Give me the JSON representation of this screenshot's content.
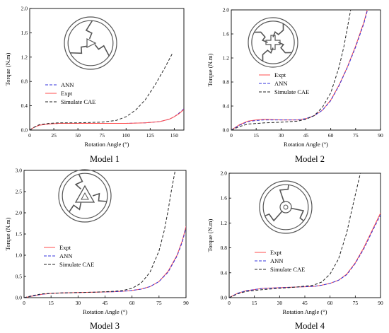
{
  "colors": {
    "expt": "#ff4d4d",
    "ann": "#3333dd",
    "cae": "#222222",
    "axis": "#000000",
    "model_drawing": "#555555"
  },
  "chart_data": [
    {
      "type": "line",
      "caption": "Model 1",
      "xlabel": "Rotation Angle (°)",
      "ylabel": "Torque (N.m)",
      "xlim": [
        0,
        160
      ],
      "ylim": [
        0,
        2.0
      ],
      "xticks": [
        "0",
        "25",
        "50",
        "75",
        "100",
        "125",
        "150"
      ],
      "xtick_values": [
        0,
        25,
        50,
        75,
        100,
        125,
        150
      ],
      "yticks": [
        "0.0",
        "0.4",
        "0.8",
        "1.2",
        "1.6",
        "2.0"
      ],
      "ytick_values": [
        0,
        0.4,
        0.8,
        1.2,
        1.6,
        2.0
      ],
      "grid": false,
      "legend_position": "center-left",
      "legend_order": [
        "ANN",
        "Expt",
        "Simulate CAE"
      ],
      "inset_icon": "model-1-geometry",
      "series": [
        {
          "name": "ANN",
          "style": "dashed",
          "color_key": "ann",
          "x": [
            0,
            5,
            10,
            20,
            30,
            50,
            75,
            100,
            120,
            135,
            145,
            150,
            155,
            160
          ],
          "y": [
            0,
            0.05,
            0.08,
            0.1,
            0.11,
            0.11,
            0.11,
            0.11,
            0.12,
            0.14,
            0.18,
            0.22,
            0.28,
            0.35
          ]
        },
        {
          "name": "Expt",
          "style": "solid",
          "color_key": "expt",
          "x": [
            0,
            5,
            10,
            20,
            30,
            50,
            75,
            100,
            120,
            135,
            145,
            150,
            155,
            160
          ],
          "y": [
            0,
            0.05,
            0.08,
            0.1,
            0.11,
            0.11,
            0.11,
            0.11,
            0.12,
            0.14,
            0.18,
            0.22,
            0.27,
            0.34
          ]
        },
        {
          "name": "Simulate CAE",
          "style": "dashed",
          "color_key": "cae",
          "x": [
            0,
            5,
            10,
            20,
            30,
            50,
            75,
            90,
            100,
            110,
            120,
            130,
            140,
            148
          ],
          "y": [
            0,
            0.05,
            0.09,
            0.11,
            0.12,
            0.12,
            0.13,
            0.16,
            0.22,
            0.33,
            0.5,
            0.74,
            1.02,
            1.26
          ]
        }
      ]
    },
    {
      "type": "line",
      "caption": "Model 2",
      "xlabel": "Rotation Angle (°)",
      "ylabel": "Torque (N.m)",
      "xlim": [
        0,
        90
      ],
      "ylim": [
        0,
        2.0
      ],
      "xticks": [
        "0",
        "15",
        "30",
        "45",
        "60",
        "75",
        "90"
      ],
      "xtick_values": [
        0,
        15,
        30,
        45,
        60,
        75,
        90
      ],
      "yticks": [
        "0.0",
        "0.4",
        "0.8",
        "1.2",
        "1.6",
        "2.0"
      ],
      "ytick_values": [
        0,
        0.4,
        0.8,
        1.2,
        1.6,
        2.0
      ],
      "grid": false,
      "legend_position": "center-right",
      "legend_order": [
        "Expt",
        "ANN",
        "Simulate CAE"
      ],
      "inset_icon": "model-2-geometry",
      "series": [
        {
          "name": "Expt",
          "style": "solid",
          "color_key": "expt",
          "x": [
            0,
            5,
            10,
            15,
            20,
            30,
            40,
            45,
            50,
            55,
            60,
            65,
            70,
            75,
            80,
            82
          ],
          "y": [
            0,
            0.09,
            0.15,
            0.17,
            0.18,
            0.17,
            0.17,
            0.19,
            0.24,
            0.33,
            0.5,
            0.75,
            1.05,
            1.4,
            1.8,
            2.0
          ]
        },
        {
          "name": "ANN",
          "style": "dashed",
          "color_key": "ann",
          "x": [
            0,
            5,
            10,
            15,
            20,
            30,
            40,
            45,
            50,
            55,
            60,
            65,
            70,
            75,
            80,
            82
          ],
          "y": [
            0,
            0.08,
            0.14,
            0.16,
            0.17,
            0.17,
            0.17,
            0.19,
            0.24,
            0.33,
            0.49,
            0.74,
            1.04,
            1.38,
            1.78,
            1.98
          ]
        },
        {
          "name": "Simulate CAE",
          "style": "dashed",
          "color_key": "cae",
          "x": [
            0,
            5,
            10,
            20,
            30,
            40,
            45,
            50,
            55,
            60,
            65,
            68,
            70,
            72
          ],
          "y": [
            0,
            0.06,
            0.1,
            0.12,
            0.13,
            0.15,
            0.18,
            0.24,
            0.38,
            0.62,
            1.05,
            1.4,
            1.7,
            2.0
          ]
        }
      ]
    },
    {
      "type": "line",
      "caption": "Model 3",
      "xlabel": "Rotation Angle (°)",
      "ylabel": "Torque (N.m)",
      "xlim": [
        0,
        90
      ],
      "ylim": [
        0,
        3.0
      ],
      "xticks": [
        "0",
        "15",
        "30",
        "45",
        "60",
        "75",
        "90"
      ],
      "xtick_values": [
        0,
        15,
        30,
        45,
        60,
        75,
        90
      ],
      "yticks": [
        "0.0",
        "0.5",
        "1.0",
        "1.5",
        "2.0",
        "2.5",
        "3.0"
      ],
      "ytick_values": [
        0,
        0.5,
        1.0,
        1.5,
        2.0,
        2.5,
        3.0
      ],
      "grid": false,
      "legend_position": "center-right",
      "legend_order": [
        "Expt",
        "ANN",
        "Simulate CAE"
      ],
      "inset_icon": "model-3-geometry",
      "series": [
        {
          "name": "Expt",
          "style": "solid",
          "color_key": "expt",
          "x": [
            0,
            5,
            10,
            15,
            20,
            30,
            40,
            50,
            55,
            60,
            65,
            70,
            75,
            80,
            85,
            88,
            90
          ],
          "y": [
            0,
            0.04,
            0.08,
            0.1,
            0.11,
            0.12,
            0.13,
            0.14,
            0.15,
            0.17,
            0.2,
            0.26,
            0.38,
            0.62,
            1.0,
            1.35,
            1.68
          ]
        },
        {
          "name": "ANN",
          "style": "dashed",
          "color_key": "ann",
          "x": [
            0,
            5,
            10,
            15,
            20,
            30,
            40,
            50,
            55,
            60,
            65,
            70,
            75,
            80,
            85,
            88,
            90
          ],
          "y": [
            0,
            0.04,
            0.08,
            0.1,
            0.11,
            0.12,
            0.13,
            0.14,
            0.15,
            0.17,
            0.2,
            0.26,
            0.38,
            0.6,
            0.98,
            1.32,
            1.65
          ]
        },
        {
          "name": "Simulate CAE",
          "style": "dashed",
          "color_key": "cae",
          "x": [
            0,
            5,
            10,
            20,
            30,
            40,
            50,
            55,
            60,
            65,
            70,
            75,
            78,
            80,
            82,
            84
          ],
          "y": [
            0,
            0.05,
            0.09,
            0.11,
            0.12,
            0.13,
            0.15,
            0.17,
            0.22,
            0.34,
            0.6,
            1.1,
            1.6,
            2.05,
            2.55,
            3.0
          ]
        }
      ]
    },
    {
      "type": "line",
      "caption": "Model 4",
      "xlabel": "Rotation Angle (°)",
      "ylabel": "Torque (N.m)",
      "xlim": [
        0,
        90
      ],
      "ylim": [
        0,
        2.0
      ],
      "xticks": [
        "0",
        "15",
        "30",
        "45",
        "60",
        "75",
        "90"
      ],
      "xtick_values": [
        0,
        15,
        30,
        45,
        60,
        75,
        90
      ],
      "yticks": [
        "0.0",
        "0.4",
        "0.8",
        "1.2",
        "1.6",
        "2.0"
      ],
      "ytick_values": [
        0,
        0.4,
        0.8,
        1.2,
        1.6,
        2.0
      ],
      "grid": false,
      "legend_position": "center-right",
      "legend_order": [
        "Expt",
        "ANN",
        "Simulate CAE"
      ],
      "inset_icon": "model-4-geometry",
      "series": [
        {
          "name": "Expt",
          "style": "solid",
          "color_key": "expt",
          "x": [
            0,
            5,
            10,
            15,
            20,
            30,
            40,
            50,
            55,
            60,
            65,
            70,
            75,
            80,
            85,
            90
          ],
          "y": [
            0,
            0.07,
            0.11,
            0.13,
            0.15,
            0.16,
            0.17,
            0.18,
            0.2,
            0.23,
            0.28,
            0.38,
            0.56,
            0.8,
            1.08,
            1.36
          ]
        },
        {
          "name": "ANN",
          "style": "dashed",
          "color_key": "ann",
          "x": [
            0,
            5,
            10,
            15,
            20,
            30,
            40,
            50,
            55,
            60,
            65,
            70,
            75,
            80,
            85,
            90
          ],
          "y": [
            0,
            0.07,
            0.11,
            0.13,
            0.15,
            0.16,
            0.17,
            0.18,
            0.2,
            0.23,
            0.28,
            0.37,
            0.55,
            0.78,
            1.06,
            1.33
          ]
        },
        {
          "name": "Simulate CAE",
          "style": "dashed",
          "color_key": "cae",
          "x": [
            0,
            5,
            10,
            20,
            30,
            40,
            50,
            55,
            60,
            65,
            70,
            72,
            75,
            78
          ],
          "y": [
            0,
            0.06,
            0.1,
            0.13,
            0.15,
            0.17,
            0.2,
            0.25,
            0.38,
            0.62,
            1.05,
            1.3,
            1.65,
            2.0
          ]
        }
      ]
    }
  ]
}
